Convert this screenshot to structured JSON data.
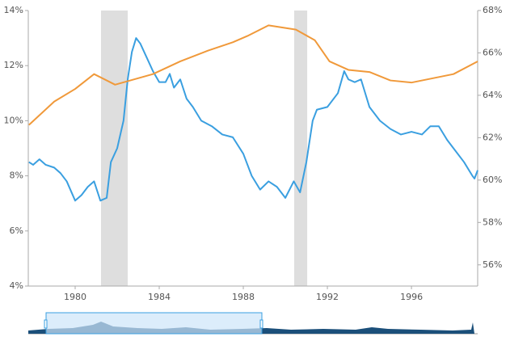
{
  "chart_data": {
    "type": "line",
    "xlim": [
      1977.77,
      1999.15
    ],
    "xticks": [
      1980,
      1984,
      1988,
      1992,
      1996
    ],
    "ylim": [
      4,
      14
    ],
    "yticks": [
      {
        "value": 4,
        "label": "4%"
      },
      {
        "value": 6,
        "label": "6%"
      },
      {
        "value": 8,
        "label": "8%"
      },
      {
        "value": 10,
        "label": "10%"
      },
      {
        "value": 12,
        "label": "12%"
      },
      {
        "value": 14,
        "label": "14%"
      }
    ],
    "y2lim": [
      55,
      68
    ],
    "y2ticks": [
      {
        "value": 56,
        "label": "56%"
      },
      {
        "value": 58,
        "label": "58%"
      },
      {
        "value": 60,
        "label": "60%"
      },
      {
        "value": 62,
        "label": "62%"
      },
      {
        "value": 64,
        "label": "64%"
      },
      {
        "value": 66,
        "label": "66%"
      },
      {
        "value": 68,
        "label": "68%"
      }
    ],
    "shaded_ranges": [
      [
        1981.23,
        1982.5
      ],
      [
        1990.42,
        1991.04
      ]
    ],
    "shade_color": "#dedede",
    "series": [
      {
        "color": "#3a9fe0",
        "x": [
          1977.8,
          1978.0,
          1978.3,
          1978.6,
          1979.0,
          1979.3,
          1979.6,
          1980.0,
          1980.3,
          1980.6,
          1980.9,
          1981.2,
          1981.5,
          1981.7,
          1982.0,
          1982.3,
          1982.5,
          1982.7,
          1982.9,
          1983.1,
          1983.4,
          1983.7,
          1984.0,
          1984.3,
          1984.5,
          1984.7,
          1985.0,
          1985.3,
          1985.6,
          1986.0,
          1986.5,
          1987.0,
          1987.5,
          1988.0,
          1988.4,
          1988.8,
          1989.2,
          1989.6,
          1990.0,
          1990.4,
          1990.7,
          1991.0,
          1991.3,
          1991.5,
          1992.0,
          1992.5,
          1992.8,
          1993.0,
          1993.3,
          1993.6,
          1994.0,
          1994.5,
          1995.0,
          1995.5,
          1996.0,
          1996.5,
          1996.9,
          1997.3,
          1997.7,
          1998.0,
          1998.5,
          1998.9,
          1999.0,
          1999.15
        ],
        "values": [
          8.5,
          8.4,
          8.6,
          8.4,
          8.3,
          8.1,
          7.8,
          7.1,
          7.3,
          7.6,
          7.8,
          7.1,
          7.2,
          8.5,
          9.0,
          10.0,
          11.5,
          12.5,
          13.0,
          12.8,
          12.3,
          11.8,
          11.4,
          11.4,
          11.7,
          11.2,
          11.5,
          10.8,
          10.5,
          10.0,
          9.8,
          9.5,
          9.4,
          8.8,
          8.0,
          7.5,
          7.8,
          7.6,
          7.2,
          7.8,
          7.4,
          8.5,
          10.0,
          10.4,
          10.5,
          11.0,
          11.8,
          11.5,
          11.4,
          11.5,
          10.5,
          10.0,
          9.7,
          9.5,
          9.6,
          9.5,
          9.8,
          9.8,
          9.3,
          9.0,
          8.5,
          8.0,
          7.9,
          8.2
        ]
      },
      {
        "color": "#f0993a",
        "axis": "y2",
        "x": [
          1977.8,
          1979.0,
          1980.0,
          1980.9,
          1981.9,
          1983.7,
          1985.0,
          1986.3,
          1987.5,
          1988.2,
          1989.2,
          1990.5,
          1991.4,
          1992.1,
          1993.0,
          1994.0,
          1995.0,
          1996.0,
          1997.0,
          1998.0,
          1999.15
        ],
        "values": [
          62.6,
          63.7,
          64.3,
          65.0,
          64.5,
          65.0,
          65.6,
          66.1,
          66.5,
          66.8,
          67.3,
          67.1,
          66.6,
          65.6,
          65.2,
          65.1,
          64.7,
          64.6,
          64.8,
          65.0,
          65.6
        ]
      }
    ]
  }
}
